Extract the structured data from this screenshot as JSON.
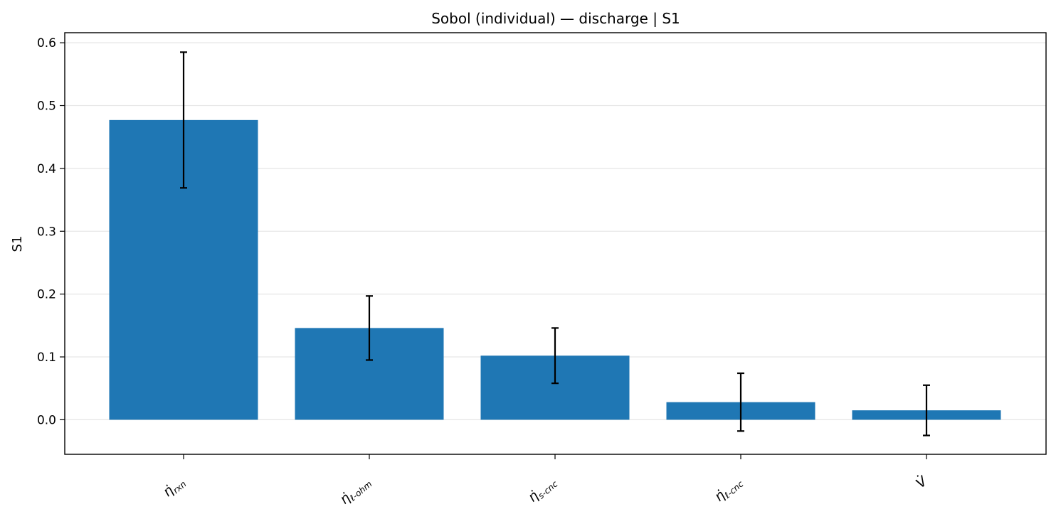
{
  "chart_data": {
    "type": "bar",
    "title": "Sobol (individual) — discharge | S1",
    "xlabel": "",
    "ylabel": "S1",
    "ylim": [
      -0.055,
      0.616
    ],
    "yticks": [
      "0.0",
      "0.1",
      "0.2",
      "0.3",
      "0.4",
      "0.5",
      "0.6"
    ],
    "grid": "horizontal",
    "categories": [
      {
        "main": "η̇",
        "sub": "rxn"
      },
      {
        "main": "η̇",
        "sub": "ℓ-ohm"
      },
      {
        "main": "η̇",
        "sub": "s-cnc"
      },
      {
        "main": "η̇",
        "sub": "ℓ-cnc"
      },
      {
        "main": "V̇",
        "sub": ""
      }
    ],
    "values": [
      0.477,
      0.146,
      0.102,
      0.028,
      0.015
    ],
    "errors": [
      0.108,
      0.051,
      0.044,
      0.046,
      0.04
    ],
    "bar_color": "#1f77b4",
    "error_color": "#000000"
  }
}
